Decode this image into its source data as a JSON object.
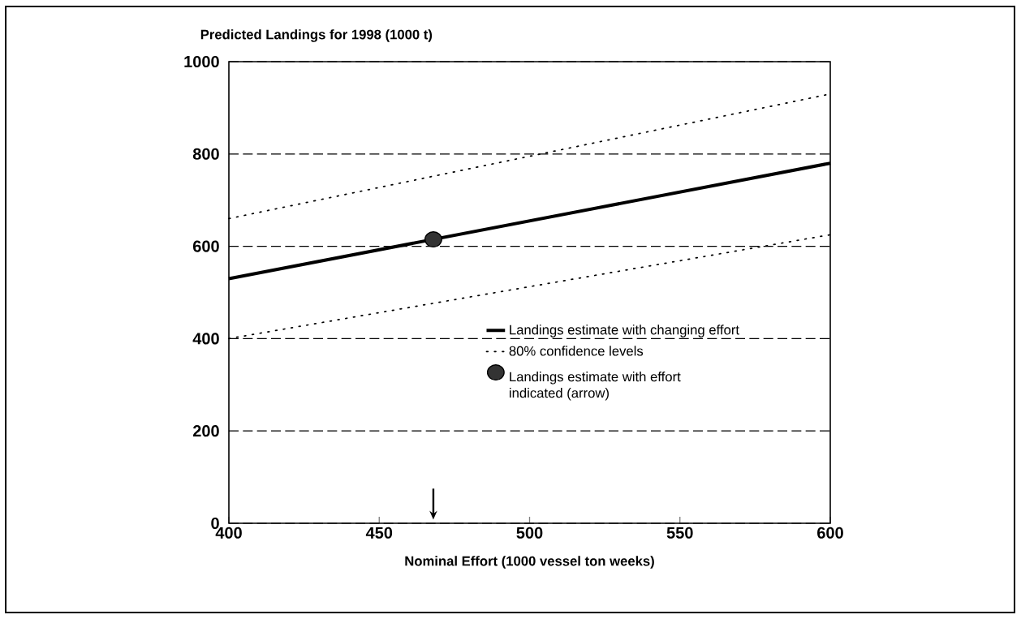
{
  "chart_data": {
    "type": "line",
    "ylabel": "Predicted Landings for 1998 (1000 t)",
    "xlabel": "Nominal Effort (1000 vessel ton weeks)",
    "xlim": [
      400,
      600
    ],
    "ylim": [
      0,
      1000
    ],
    "xticks": [
      400,
      450,
      500,
      550,
      600
    ],
    "yticks": [
      0,
      200,
      400,
      600,
      800,
      1000
    ],
    "grid": "y",
    "legend": "bottom right",
    "series": [
      {
        "name": "Landings estimate with changing effort",
        "color": "#000000",
        "x": [
          400,
          600
        ],
        "values": [
          530,
          780
        ],
        "line_style": "solid",
        "marker": "none"
      },
      {
        "name": "80% confidence levels",
        "color": "#000000",
        "x": [
          400,
          600
        ],
        "values": [
          400,
          625
        ],
        "line_style": "dotted",
        "marker": "none"
      },
      {
        "color": "#000000",
        "x": [
          400,
          600
        ],
        "values": [
          660,
          930
        ],
        "line_style": "dotted",
        "marker": "none"
      },
      {
        "name": "Landings estimate with effort indicated (arrow)",
        "type": "scatter",
        "color": "#333333",
        "x": [
          468
        ],
        "values": [
          615
        ],
        "marker": "circle"
      }
    ]
  }
}
